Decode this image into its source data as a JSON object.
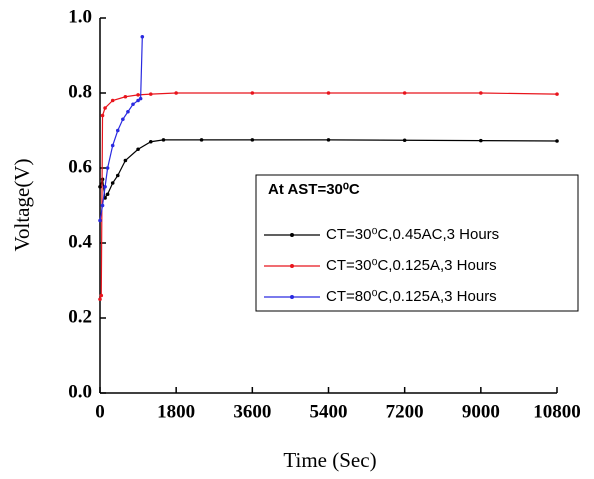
{
  "chart_data": {
    "type": "line",
    "xlabel": "Time (Sec)",
    "ylabel": "Voltage(V)",
    "legend_title": "At  AST=30⁰C",
    "legend": "center right",
    "series": [
      {
        "name": "CT=30⁰C,0.45AC,3 Hours",
        "color": "#000000",
        "x": [
          0,
          60,
          120,
          180,
          300,
          420,
          600,
          900,
          1200,
          1500,
          2400,
          3600,
          5400,
          7200,
          9000,
          10800
        ],
        "values": [
          0.55,
          0.57,
          0.52,
          0.53,
          0.56,
          0.58,
          0.62,
          0.65,
          0.67,
          0.675,
          0.675,
          0.675,
          0.675,
          0.674,
          0.673,
          0.672
        ]
      },
      {
        "name": "CT=30⁰C,0.125A,3 Hours",
        "color": "#e8141c",
        "x": [
          0,
          30,
          60,
          120,
          300,
          600,
          900,
          1200,
          1800,
          3600,
          5400,
          7200,
          9000,
          10800
        ],
        "values": [
          0.25,
          0.26,
          0.74,
          0.76,
          0.78,
          0.79,
          0.795,
          0.797,
          0.8,
          0.8,
          0.8,
          0.8,
          0.8,
          0.797
        ]
      },
      {
        "name": "CT=80⁰C,0.125A,3 Hours",
        "color": "#2a2ae0",
        "x": [
          0,
          60,
          120,
          180,
          300,
          420,
          540,
          660,
          780,
          900,
          960,
          1000
        ],
        "values": [
          0.46,
          0.5,
          0.55,
          0.6,
          0.66,
          0.7,
          0.73,
          0.75,
          0.77,
          0.78,
          0.785,
          0.95
        ]
      }
    ],
    "xlim": [
      0,
      10800
    ],
    "xticks": [
      0,
      1800,
      3600,
      5400,
      7200,
      9000,
      10800
    ],
    "ylim": [
      0,
      1
    ],
    "yticks": [
      {
        "value": 0,
        "label": "0.0"
      },
      0.2,
      0.4,
      0.6,
      0.8,
      {
        "value": 1,
        "label": "1.0"
      }
    ]
  }
}
